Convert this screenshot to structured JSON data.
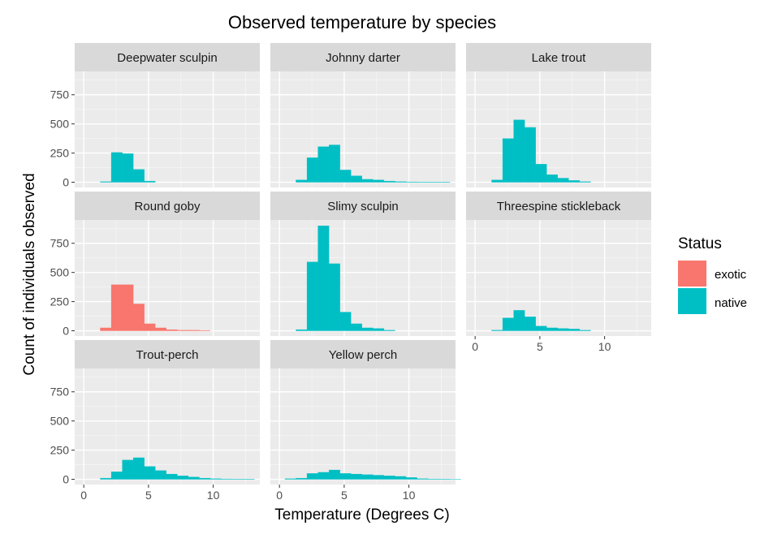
{
  "chart_data": {
    "type": "bar",
    "title": "Observed temperature by species",
    "xlabel": "Temperature (Degrees C)",
    "ylabel": "Count of individuals observed",
    "xlim": [
      -0.7,
      13.6
    ],
    "ylim": [
      -45,
      950
    ],
    "x_ticks": [
      0,
      5,
      10
    ],
    "y_ticks": [
      0,
      250,
      500,
      750
    ],
    "bin_width": 0.85,
    "grid": true,
    "legend": {
      "title": "Status",
      "position": "right",
      "items": [
        {
          "label": "exotic",
          "color": "#F8766D"
        },
        {
          "label": "native",
          "color": "#00BFC4"
        }
      ]
    },
    "facets": [
      {
        "name": "Deepwater sculpin",
        "status": "native",
        "bins_start": 1.275,
        "values": [
          5,
          255,
          245,
          110,
          10,
          0,
          0,
          0,
          0,
          0,
          0,
          0,
          0,
          0
        ]
      },
      {
        "name": "Johnny darter",
        "status": "native",
        "bins_start": 1.275,
        "values": [
          20,
          210,
          305,
          320,
          105,
          55,
          25,
          20,
          10,
          5,
          3,
          2,
          2,
          2
        ]
      },
      {
        "name": "Lake trout",
        "status": "native",
        "bins_start": 1.275,
        "values": [
          20,
          375,
          535,
          470,
          155,
          65,
          35,
          15,
          5,
          0,
          0,
          0,
          0,
          0
        ]
      },
      {
        "name": "Round goby",
        "status": "exotic",
        "bins_start": 1.275,
        "values": [
          25,
          395,
          395,
          230,
          60,
          25,
          10,
          5,
          5,
          3,
          0,
          0,
          0,
          0
        ]
      },
      {
        "name": "Slimy sculpin",
        "status": "native",
        "bins_start": 1.275,
        "values": [
          10,
          590,
          900,
          575,
          160,
          60,
          25,
          20,
          5,
          0,
          0,
          0,
          0,
          0
        ]
      },
      {
        "name": "Threespine stickleback",
        "status": "native",
        "bins_start": 1.275,
        "values": [
          5,
          110,
          175,
          120,
          40,
          25,
          20,
          15,
          5,
          0,
          0,
          0,
          0,
          0
        ]
      },
      {
        "name": "Trout-perch",
        "status": "native",
        "bins_start": 1.275,
        "values": [
          10,
          65,
          165,
          185,
          110,
          75,
          45,
          30,
          20,
          10,
          5,
          3,
          2,
          2
        ]
      },
      {
        "name": "Yellow perch",
        "status": "native",
        "bins_start": 0.425,
        "values": [
          5,
          10,
          50,
          60,
          80,
          50,
          45,
          40,
          35,
          30,
          25,
          15,
          5,
          3,
          2,
          1
        ]
      }
    ]
  }
}
